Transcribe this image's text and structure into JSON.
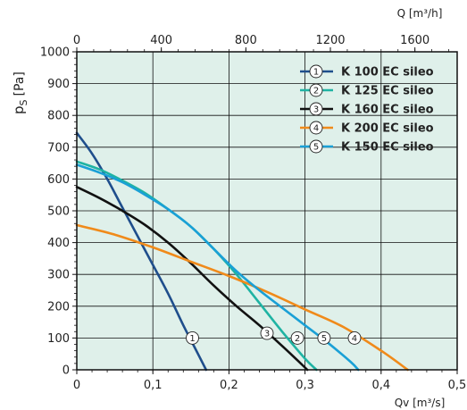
{
  "chart_data": {
    "type": "line",
    "ylabel_main": "p",
    "ylabel_sub": "S",
    "ylabel_unit": "[Pa]",
    "xlabel": "Qv [m³/s]",
    "x2label": "Q [m³/h]",
    "xlim": [
      0,
      0.5
    ],
    "ylim": [
      0,
      1000
    ],
    "x2lim": [
      0,
      1800
    ],
    "x_ticks": [
      0,
      0.1,
      0.2,
      0.3,
      0.4,
      0.5
    ],
    "x_tick_labels": [
      "0",
      "0,1",
      "0,2",
      "0,3",
      "0,4",
      "0,5"
    ],
    "y_ticks": [
      0,
      100,
      200,
      300,
      400,
      500,
      600,
      700,
      800,
      900,
      1000
    ],
    "y_tick_labels": [
      "0",
      "100",
      "200",
      "300",
      "400",
      "500",
      "600",
      "700",
      "800",
      "900",
      "1000"
    ],
    "x2_ticks": [
      0,
      400,
      800,
      1200,
      1600
    ],
    "x2_tick_labels": [
      "0",
      "400",
      "800",
      "1200",
      "1600"
    ],
    "grid": true,
    "legend_position": "top-right",
    "background_color": "#dff0ea",
    "series": [
      {
        "marker": "1",
        "name": "K 100 EC sileo",
        "color": "#1f4e8c",
        "x": [
          0,
          0.02,
          0.04,
          0.06,
          0.08,
          0.1,
          0.12,
          0.14,
          0.155,
          0.17
        ],
        "y": [
          745,
          680,
          600,
          510,
          420,
          330,
          240,
          140,
          70,
          0
        ],
        "label_at": [
          0.152,
          100
        ]
      },
      {
        "marker": "2",
        "name": "K 125 EC sileo",
        "color": "#1fb3a3",
        "x": [
          0,
          0.03,
          0.06,
          0.09,
          0.12,
          0.15,
          0.18,
          0.21,
          0.24,
          0.27,
          0.3,
          0.315
        ],
        "y": [
          655,
          630,
          595,
          555,
          505,
          450,
          380,
          300,
          210,
          120,
          35,
          0
        ],
        "label_at": [
          0.29,
          100
        ]
      },
      {
        "marker": "3",
        "name": "K 160 EC sileo",
        "color": "#111111",
        "x": [
          0,
          0.03,
          0.06,
          0.09,
          0.12,
          0.15,
          0.18,
          0.21,
          0.24,
          0.27,
          0.29,
          0.303
        ],
        "y": [
          575,
          540,
          500,
          455,
          400,
          335,
          265,
          200,
          140,
          75,
          30,
          0
        ],
        "label_at": [
          0.25,
          115
        ]
      },
      {
        "marker": "4",
        "name": "K 200 EC sileo",
        "color": "#f08a1a",
        "x": [
          0,
          0.05,
          0.1,
          0.15,
          0.2,
          0.25,
          0.3,
          0.35,
          0.4,
          0.435
        ],
        "y": [
          455,
          425,
          385,
          340,
          295,
          245,
          190,
          135,
          60,
          0
        ],
        "label_at": [
          0.365,
          100
        ]
      },
      {
        "marker": "5",
        "name": "K 150 EC sileo",
        "color": "#1aa0d6",
        "x": [
          0,
          0.03,
          0.06,
          0.09,
          0.12,
          0.15,
          0.18,
          0.21,
          0.24,
          0.27,
          0.3,
          0.33,
          0.36,
          0.37
        ],
        "y": [
          645,
          620,
          590,
          550,
          505,
          450,
          380,
          310,
          250,
          195,
          140,
          85,
          25,
          0
        ],
        "label_at": [
          0.325,
          100
        ]
      }
    ]
  }
}
